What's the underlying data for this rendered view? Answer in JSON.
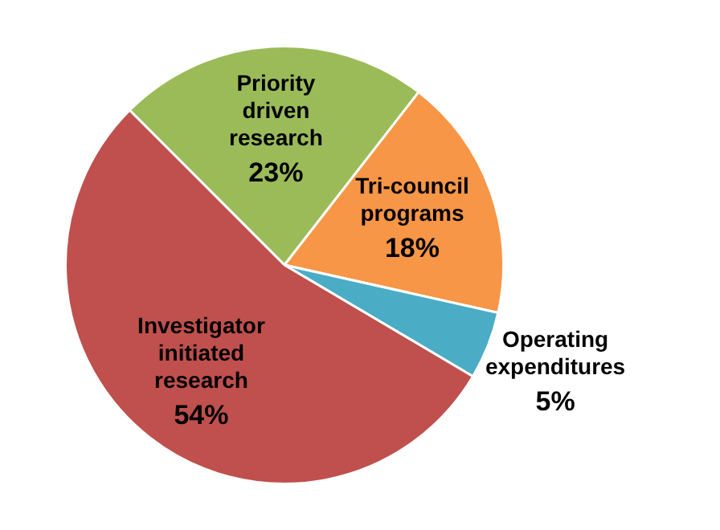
{
  "chart_data": {
    "type": "pie",
    "categories": [
      "Priority driven research",
      "Tri-council programs",
      "Operating expenditures",
      "Investigator initiated research"
    ],
    "values": [
      23,
      18,
      5,
      54
    ],
    "value_labels": [
      "23%",
      "18%",
      "5%",
      "54%"
    ],
    "colors": [
      "#9bbb59",
      "#f79646",
      "#4bacc6",
      "#c0504d"
    ],
    "legend": false
  }
}
